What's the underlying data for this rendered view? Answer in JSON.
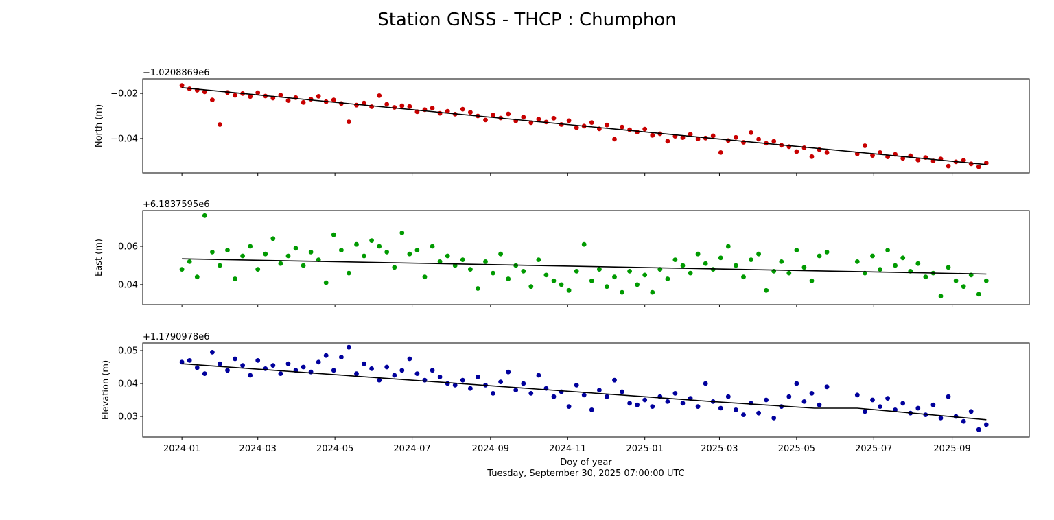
{
  "chart_data": {
    "type": "scatter",
    "title": "Station GNSS - THCP : Chumphon",
    "xlabel": "Doy of year",
    "subtitle": "Tuesday, September 30, 2025 07:00:00 UTC",
    "x_start_date": "2024-01-01",
    "x_step_days": 6,
    "x_last_day": 636,
    "gap_days": [
      513,
      531
    ],
    "x_range_days": [
      -31,
      670
    ],
    "x_ticks": [
      {
        "day": 0,
        "label": "2024-01"
      },
      {
        "day": 60,
        "label": "2024-03"
      },
      {
        "day": 121,
        "label": "2024-05"
      },
      {
        "day": 182,
        "label": "2024-07"
      },
      {
        "day": 244,
        "label": "2024-09"
      },
      {
        "day": 305,
        "label": "2024-11"
      },
      {
        "day": 366,
        "label": "2025-01"
      },
      {
        "day": 425,
        "label": "2025-03"
      },
      {
        "day": 486,
        "label": "2025-05"
      },
      {
        "day": 547,
        "label": "2025-07"
      },
      {
        "day": 609,
        "label": "2025-09"
      }
    ],
    "panels": [
      {
        "name": "North",
        "ylabel": "North (m)",
        "offset_label": "−1.0208869e6",
        "color": "#c80000",
        "ylim": [
          -0.0552,
          -0.0136
        ],
        "y_ticks": [
          {
            "value": -0.02,
            "label": "−0.02"
          },
          {
            "value": -0.04,
            "label": "−0.04"
          }
        ],
        "trend": [
          [
            0,
            -0.0175
          ],
          [
            636,
            -0.0515
          ]
        ],
        "values": [
          -0.0165,
          -0.018,
          -0.0186,
          -0.0193,
          -0.0229,
          -0.0338,
          -0.0196,
          -0.0209,
          -0.0201,
          -0.0214,
          -0.0197,
          -0.0212,
          -0.0221,
          -0.0208,
          -0.0232,
          -0.0219,
          -0.024,
          -0.0226,
          -0.0213,
          -0.0237,
          -0.0229,
          -0.0245,
          -0.0326,
          -0.0252,
          -0.0243,
          -0.0259,
          -0.021,
          -0.0248,
          -0.0262,
          -0.0255,
          -0.0258,
          -0.0281,
          -0.0272,
          -0.0265,
          -0.0288,
          -0.0279,
          -0.0292,
          -0.027,
          -0.0284,
          -0.03,
          -0.0318,
          -0.0296,
          -0.0309,
          -0.0291,
          -0.0322,
          -0.0305,
          -0.033,
          -0.0314,
          -0.0327,
          -0.031,
          -0.0338,
          -0.0321,
          -0.0352,
          -0.0345,
          -0.0329,
          -0.0357,
          -0.034,
          -0.0403,
          -0.0349,
          -0.0361,
          -0.0371,
          -0.0358,
          -0.0386,
          -0.0379,
          -0.0412,
          -0.039,
          -0.0396,
          -0.0381,
          -0.0402,
          -0.0398,
          -0.0388,
          -0.0462,
          -0.0409,
          -0.0395,
          -0.0417,
          -0.0374,
          -0.0403,
          -0.0421,
          -0.0412,
          -0.043,
          -0.0436,
          -0.0458,
          -0.0441,
          -0.048,
          -0.0449,
          -0.0462,
          -0.0468,
          -0.0432,
          -0.0475,
          -0.0462,
          -0.0481,
          -0.047,
          -0.0488,
          -0.0476,
          -0.0495,
          -0.0484,
          -0.0499,
          -0.049,
          -0.0522,
          -0.0503,
          -0.0496,
          -0.0512,
          -0.0525,
          -0.0508
        ]
      },
      {
        "name": "East",
        "ylabel": "East (m)",
        "offset_label": "+6.1837595e6",
        "color": "#009a00",
        "ylim": [
          0.0296,
          0.0786
        ],
        "y_ticks": [
          {
            "value": 0.06,
            "label": "0.06"
          },
          {
            "value": 0.04,
            "label": "0.04"
          }
        ],
        "trend": [
          [
            0,
            0.0535
          ],
          [
            636,
            0.0455
          ]
        ],
        "values": [
          0.048,
          0.052,
          0.044,
          0.076,
          0.057,
          0.05,
          0.058,
          0.043,
          0.055,
          0.06,
          0.048,
          0.056,
          0.064,
          0.051,
          0.055,
          0.059,
          0.05,
          0.057,
          0.053,
          0.041,
          0.066,
          0.058,
          0.046,
          0.061,
          0.055,
          0.063,
          0.06,
          0.057,
          0.049,
          0.067,
          0.056,
          0.058,
          0.044,
          0.06,
          0.052,
          0.055,
          0.05,
          0.053,
          0.048,
          0.038,
          0.052,
          0.046,
          0.056,
          0.043,
          0.05,
          0.047,
          0.039,
          0.053,
          0.045,
          0.042,
          0.04,
          0.037,
          0.047,
          0.061,
          0.042,
          0.048,
          0.039,
          0.044,
          0.036,
          0.047,
          0.04,
          0.045,
          0.036,
          0.048,
          0.043,
          0.053,
          0.05,
          0.046,
          0.056,
          0.051,
          0.048,
          0.054,
          0.06,
          0.05,
          0.044,
          0.053,
          0.056,
          0.037,
          0.047,
          0.052,
          0.046,
          0.058,
          0.049,
          0.042,
          0.055,
          0.057,
          0.052,
          0.046,
          0.055,
          0.048,
          0.058,
          0.05,
          0.054,
          0.047,
          0.051,
          0.044,
          0.046,
          0.034,
          0.049,
          0.042,
          0.039,
          0.045,
          0.035,
          0.042
        ]
      },
      {
        "name": "Elevation",
        "ylabel": "Elevation (m)",
        "offset_label": "+1.1790978e6",
        "color": "#00009c",
        "ylim": [
          0.02375,
          0.0523
        ],
        "y_ticks": [
          {
            "value": 0.05,
            "label": "0.05"
          },
          {
            "value": 0.04,
            "label": "0.04"
          },
          {
            "value": 0.03,
            "label": "0.03"
          }
        ],
        "trend": [
          [
            0,
            0.046
          ],
          [
            420,
            0.0345
          ],
          [
            500,
            0.0325
          ],
          [
            534,
            0.0325
          ],
          [
            636,
            0.029
          ]
        ],
        "values": [
          0.0465,
          0.047,
          0.0448,
          0.043,
          0.0495,
          0.046,
          0.044,
          0.0475,
          0.0455,
          0.0425,
          0.047,
          0.0445,
          0.0455,
          0.043,
          0.046,
          0.044,
          0.045,
          0.0435,
          0.0465,
          0.0485,
          0.044,
          0.048,
          0.051,
          0.043,
          0.046,
          0.0445,
          0.041,
          0.045,
          0.0425,
          0.044,
          0.0475,
          0.043,
          0.041,
          0.044,
          0.042,
          0.04,
          0.0395,
          0.041,
          0.0385,
          0.042,
          0.0395,
          0.037,
          0.0405,
          0.0435,
          0.038,
          0.04,
          0.037,
          0.0425,
          0.0385,
          0.036,
          0.0375,
          0.033,
          0.0395,
          0.0365,
          0.032,
          0.038,
          0.036,
          0.041,
          0.0375,
          0.034,
          0.0335,
          0.035,
          0.033,
          0.036,
          0.0345,
          0.037,
          0.034,
          0.0355,
          0.033,
          0.04,
          0.0345,
          0.0325,
          0.036,
          0.032,
          0.0305,
          0.034,
          0.031,
          0.035,
          0.0295,
          0.033,
          0.036,
          0.04,
          0.0345,
          0.037,
          0.0335,
          0.039,
          0.0365,
          0.0315,
          0.035,
          0.033,
          0.0355,
          0.032,
          0.034,
          0.031,
          0.0325,
          0.0305,
          0.0335,
          0.0295,
          0.036,
          0.03,
          0.0285,
          0.0315,
          0.026,
          0.0275
        ]
      }
    ]
  }
}
